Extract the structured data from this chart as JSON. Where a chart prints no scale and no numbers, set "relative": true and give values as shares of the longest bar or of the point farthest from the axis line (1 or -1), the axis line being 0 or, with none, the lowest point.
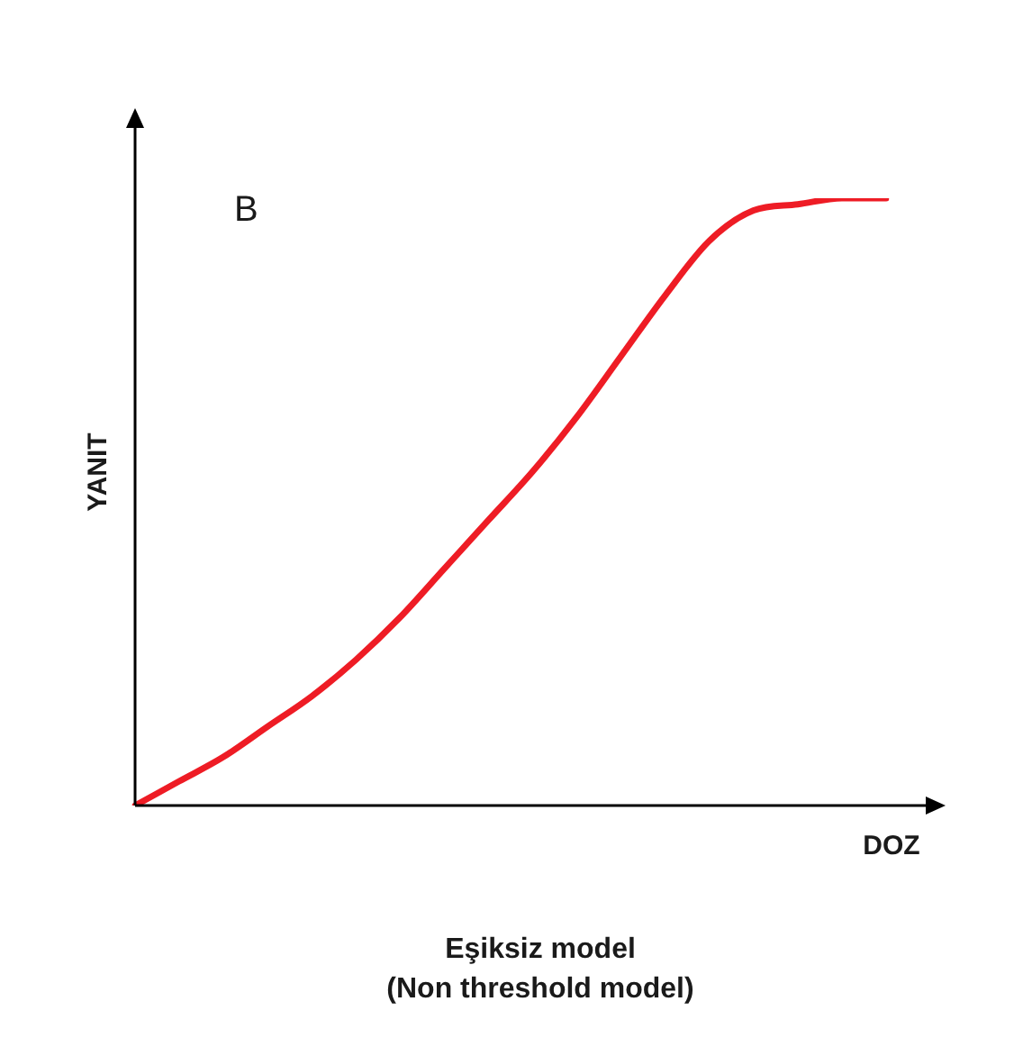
{
  "chart_data": {
    "type": "line",
    "relative": true,
    "xlabel": "DOZ",
    "ylabel": "YANIT",
    "annotations": [
      "B",
      "Eşiksiz model",
      "(Non threshold model)"
    ],
    "categories": [
      null,
      null,
      null,
      null,
      null,
      null,
      null,
      null,
      null,
      null,
      null,
      null,
      null,
      null,
      null,
      null,
      null,
      null
    ],
    "series": [
      {
        "color": "#ee1c25",
        "values": [
          0,
          0.04,
          0.08,
          0.13,
          0.18,
          0.24,
          0.31,
          0.39,
          0.47,
          0.55,
          0.64,
          0.74,
          0.84,
          0.93,
          0.98,
          0.99,
          1,
          1
        ]
      }
    ],
    "legend": false,
    "marker": "none",
    "line_style": "solid"
  }
}
